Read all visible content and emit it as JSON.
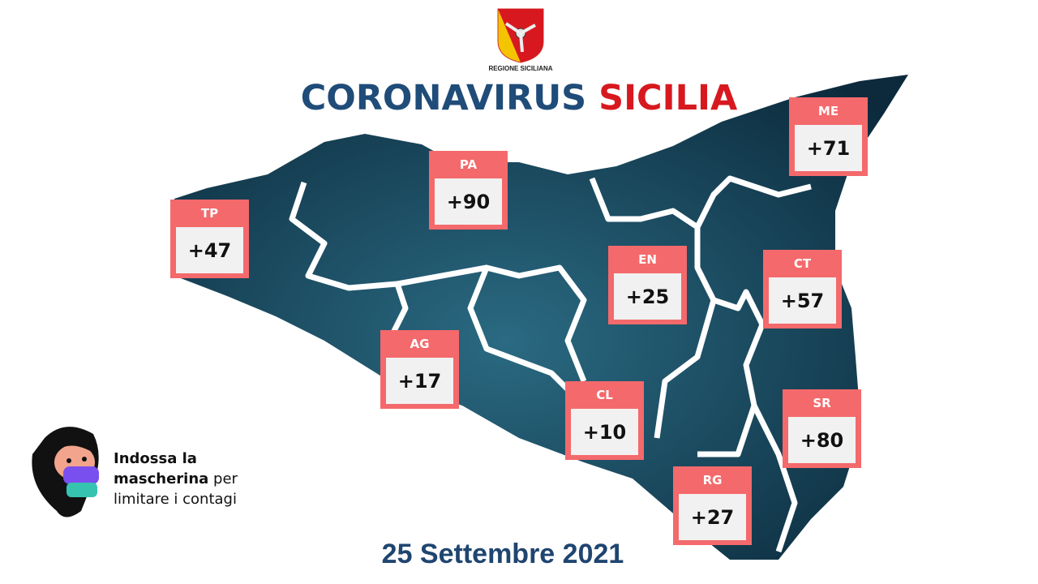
{
  "logo": {
    "text": "REGIONE SICILIANA",
    "colors": {
      "red": "#d7191f",
      "yellow": "#f5c400"
    }
  },
  "title": {
    "part1": "CORONAVIRUS",
    "part2": "SICILIA"
  },
  "provinces": [
    {
      "code": "TP",
      "value": "+47"
    },
    {
      "code": "PA",
      "value": "+90"
    },
    {
      "code": "ME",
      "value": "+71"
    },
    {
      "code": "EN",
      "value": "+25"
    },
    {
      "code": "CT",
      "value": "+57"
    },
    {
      "code": "AG",
      "value": "+17"
    },
    {
      "code": "CL",
      "value": "+10"
    },
    {
      "code": "SR",
      "value": "+80"
    },
    {
      "code": "RG",
      "value": "+27"
    }
  ],
  "message": {
    "bold1": "Indossa la",
    "bold2": "mascherina",
    "normal1": " per",
    "normal2": "limitare i contagi"
  },
  "date": "25 Settembre 2021",
  "colors": {
    "box": "#f4696b",
    "map": "#123a52",
    "title_blue": "#1f4c78",
    "title_red": "#d7191f"
  }
}
